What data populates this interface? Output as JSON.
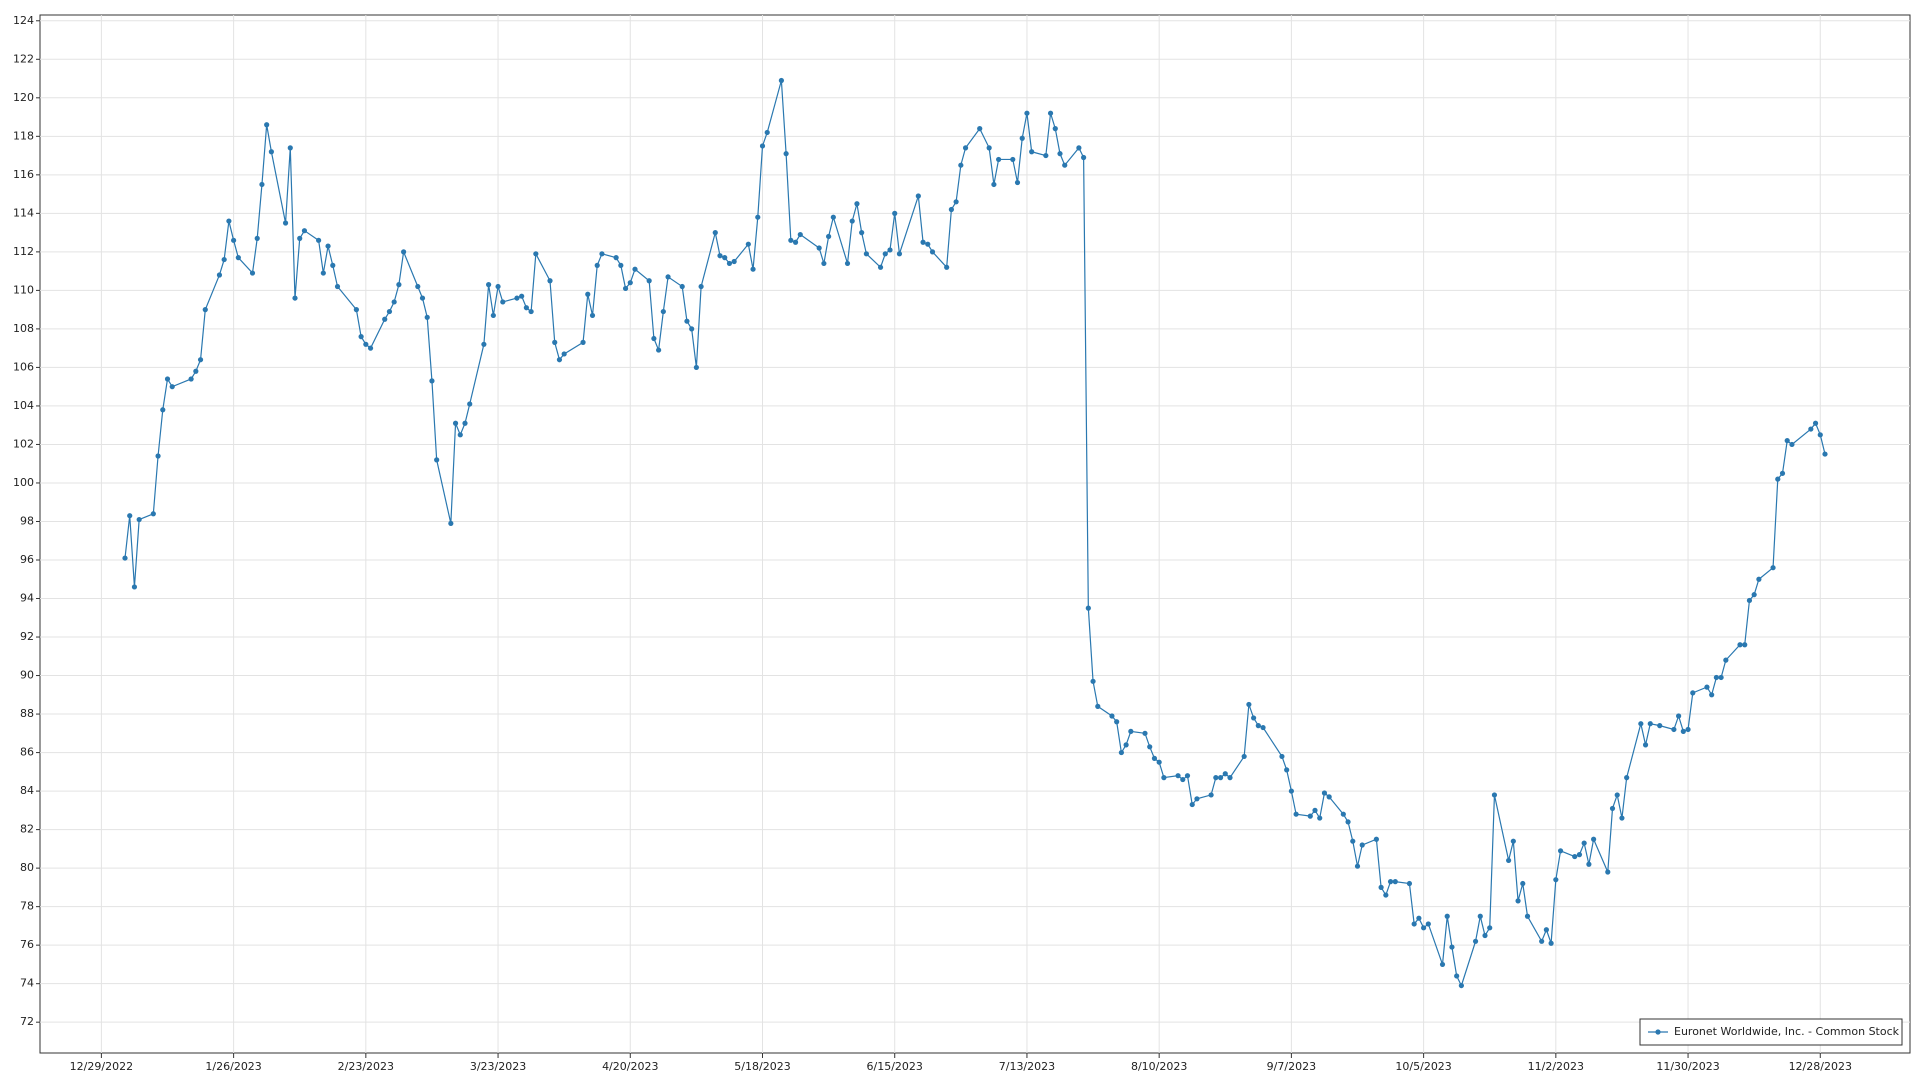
{
  "chart_data": {
    "type": "line",
    "grid": true,
    "legend": "lower right",
    "xlim": [
      "12/16/2022",
      "1/16/2024"
    ],
    "xticks": [
      "12/29/2022",
      "1/26/2023",
      "2/23/2023",
      "3/23/2023",
      "4/20/2023",
      "5/18/2023",
      "6/15/2023",
      "7/13/2023",
      "8/10/2023",
      "9/7/2023",
      "10/5/2023",
      "11/2/2023",
      "11/30/2023",
      "12/28/2023"
    ],
    "ylim": [
      70.4,
      124.3
    ],
    "yticks": [
      72,
      74,
      76,
      78,
      80,
      82,
      84,
      86,
      88,
      90,
      92,
      94,
      96,
      98,
      100,
      102,
      104,
      106,
      108,
      110,
      112,
      114,
      116,
      118,
      120,
      122,
      124
    ],
    "x": [
      "1/3/2023",
      "1/4/2023",
      "1/5/2023",
      "1/6/2023",
      "1/9/2023",
      "1/10/2023",
      "1/11/2023",
      "1/12/2023",
      "1/13/2023",
      "1/17/2023",
      "1/18/2023",
      "1/19/2023",
      "1/20/2023",
      "1/23/2023",
      "1/24/2023",
      "1/25/2023",
      "1/26/2023",
      "1/27/2023",
      "1/30/2023",
      "1/31/2023",
      "2/1/2023",
      "2/2/2023",
      "2/3/2023",
      "2/6/2023",
      "2/7/2023",
      "2/8/2023",
      "2/9/2023",
      "2/10/2023",
      "2/13/2023",
      "2/14/2023",
      "2/15/2023",
      "2/16/2023",
      "2/17/2023",
      "2/21/2023",
      "2/22/2023",
      "2/23/2023",
      "2/24/2023",
      "2/27/2023",
      "2/28/2023",
      "3/1/2023",
      "3/2/2023",
      "3/3/2023",
      "3/6/2023",
      "3/7/2023",
      "3/8/2023",
      "3/9/2023",
      "3/10/2023",
      "3/13/2023",
      "3/14/2023",
      "3/15/2023",
      "3/16/2023",
      "3/17/2023",
      "3/20/2023",
      "3/21/2023",
      "3/22/2023",
      "3/23/2023",
      "3/24/2023",
      "3/27/2023",
      "3/28/2023",
      "3/29/2023",
      "3/30/2023",
      "3/31/2023",
      "4/3/2023",
      "4/4/2023",
      "4/5/2023",
      "4/6/2023",
      "4/10/2023",
      "4/11/2023",
      "4/12/2023",
      "4/13/2023",
      "4/14/2023",
      "4/17/2023",
      "4/18/2023",
      "4/19/2023",
      "4/20/2023",
      "4/21/2023",
      "4/24/2023",
      "4/25/2023",
      "4/26/2023",
      "4/27/2023",
      "4/28/2023",
      "5/1/2023",
      "5/2/2023",
      "5/3/2023",
      "5/4/2023",
      "5/5/2023",
      "5/8/2023",
      "5/9/2023",
      "5/10/2023",
      "5/11/2023",
      "5/12/2023",
      "5/15/2023",
      "5/16/2023",
      "5/17/2023",
      "5/18/2023",
      "5/19/2023",
      "5/22/2023",
      "5/23/2023",
      "5/24/2023",
      "5/25/2023",
      "5/26/2023",
      "5/30/2023",
      "5/31/2023",
      "6/1/2023",
      "6/2/2023",
      "6/5/2023",
      "6/6/2023",
      "6/7/2023",
      "6/8/2023",
      "6/9/2023",
      "6/12/2023",
      "6/13/2023",
      "6/14/2023",
      "6/15/2023",
      "6/16/2023",
      "6/20/2023",
      "6/21/2023",
      "6/22/2023",
      "6/23/2023",
      "6/26/2023",
      "6/27/2023",
      "6/28/2023",
      "6/29/2023",
      "6/30/2023",
      "7/3/2023",
      "7/5/2023",
      "7/6/2023",
      "7/7/2023",
      "7/10/2023",
      "7/11/2023",
      "7/12/2023",
      "7/13/2023",
      "7/14/2023",
      "7/17/2023",
      "7/18/2023",
      "7/19/2023",
      "7/20/2023",
      "7/21/2023",
      "7/24/2023",
      "7/25/2023",
      "7/26/2023",
      "7/27/2023",
      "7/28/2023",
      "7/31/2023",
      "8/1/2023",
      "8/2/2023",
      "8/3/2023",
      "8/4/2023",
      "8/7/2023",
      "8/8/2023",
      "8/9/2023",
      "8/10/2023",
      "8/11/2023",
      "8/14/2023",
      "8/15/2023",
      "8/16/2023",
      "8/17/2023",
      "8/18/2023",
      "8/21/2023",
      "8/22/2023",
      "8/23/2023",
      "8/24/2023",
      "8/25/2023",
      "8/28/2023",
      "8/29/2023",
      "8/30/2023",
      "8/31/2023",
      "9/1/2023",
      "9/5/2023",
      "9/6/2023",
      "9/7/2023",
      "9/8/2023",
      "9/11/2023",
      "9/12/2023",
      "9/13/2023",
      "9/14/2023",
      "9/15/2023",
      "9/18/2023",
      "9/19/2023",
      "9/20/2023",
      "9/21/2023",
      "9/22/2023",
      "9/25/2023",
      "9/26/2023",
      "9/27/2023",
      "9/28/2023",
      "9/29/2023",
      "10/2/2023",
      "10/3/2023",
      "10/4/2023",
      "10/5/2023",
      "10/6/2023",
      "10/9/2023",
      "10/10/2023",
      "10/11/2023",
      "10/12/2023",
      "10/13/2023",
      "10/16/2023",
      "10/17/2023",
      "10/18/2023",
      "10/19/2023",
      "10/20/2023",
      "10/23/2023",
      "10/24/2023",
      "10/25/2023",
      "10/26/2023",
      "10/27/2023",
      "10/30/2023",
      "10/31/2023",
      "11/1/2023",
      "11/2/2023",
      "11/3/2023",
      "11/6/2023",
      "11/7/2023",
      "11/8/2023",
      "11/9/2023",
      "11/10/2023",
      "11/13/2023",
      "11/14/2023",
      "11/15/2023",
      "11/16/2023",
      "11/17/2023",
      "11/20/2023",
      "11/21/2023",
      "11/22/2023",
      "11/24/2023",
      "11/27/2023",
      "11/28/2023",
      "11/29/2023",
      "11/30/2023",
      "12/1/2023",
      "12/4/2023",
      "12/5/2023",
      "12/6/2023",
      "12/7/2023",
      "12/8/2023",
      "12/11/2023",
      "12/12/2023",
      "12/13/2023",
      "12/14/2023",
      "12/15/2023",
      "12/18/2023",
      "12/19/2023",
      "12/20/2023",
      "12/21/2023",
      "12/22/2023",
      "12/26/2023",
      "12/27/2023",
      "12/28/2023",
      "12/29/2023"
    ],
    "series": [
      {
        "name": "Euronet Worldwide, Inc. - Common Stock",
        "color": "#2a78b0",
        "values": [
          96.1,
          98.3,
          94.6,
          98.1,
          98.4,
          101.4,
          103.8,
          105.4,
          105.0,
          105.4,
          105.8,
          106.4,
          109.0,
          110.8,
          111.6,
          113.6,
          112.6,
          111.7,
          110.9,
          112.7,
          115.5,
          118.6,
          117.2,
          113.5,
          117.4,
          109.6,
          112.7,
          113.1,
          112.6,
          110.9,
          112.3,
          111.3,
          110.2,
          109.0,
          107.6,
          107.2,
          107.0,
          108.5,
          108.9,
          109.4,
          110.3,
          112.0,
          110.2,
          109.6,
          108.6,
          105.3,
          101.2,
          97.9,
          103.1,
          102.5,
          103.1,
          104.1,
          107.2,
          110.3,
          108.7,
          110.2,
          109.4,
          109.6,
          109.7,
          109.1,
          108.9,
          111.9,
          110.5,
          107.3,
          106.4,
          106.7,
          107.3,
          109.8,
          108.7,
          111.3,
          111.9,
          111.7,
          111.3,
          110.1,
          110.4,
          111.1,
          110.5,
          107.5,
          106.9,
          108.9,
          110.7,
          110.2,
          108.4,
          108.0,
          106.0,
          110.2,
          113.0,
          111.8,
          111.7,
          111.4,
          111.5,
          112.4,
          111.1,
          113.8,
          117.5,
          118.2,
          120.9,
          117.1,
          112.6,
          112.5,
          112.9,
          112.2,
          111.4,
          112.8,
          113.8,
          111.4,
          113.6,
          114.5,
          113.0,
          111.9,
          111.2,
          111.9,
          112.1,
          114.0,
          111.9,
          114.9,
          112.5,
          112.4,
          112.0,
          111.2,
          114.2,
          114.6,
          116.5,
          117.4,
          118.4,
          117.4,
          115.5,
          116.8,
          116.8,
          115.6,
          117.9,
          119.2,
          117.2,
          117.0,
          119.2,
          118.4,
          117.1,
          116.5,
          117.4,
          116.9,
          93.5,
          89.7,
          88.4,
          87.9,
          87.6,
          86.0,
          86.4,
          87.1,
          87.0,
          86.3,
          85.7,
          85.5,
          84.7,
          84.8,
          84.6,
          84.8,
          83.3,
          83.6,
          83.8,
          84.7,
          84.7,
          84.9,
          84.7,
          85.8,
          88.5,
          87.8,
          87.4,
          87.3,
          85.8,
          85.1,
          84.0,
          82.8,
          82.7,
          83.0,
          82.6,
          83.9,
          83.7,
          82.8,
          82.4,
          81.4,
          80.1,
          81.2,
          81.5,
          79.0,
          78.6,
          79.3,
          79.3,
          79.2,
          77.1,
          77.4,
          76.9,
          77.1,
          75.0,
          77.5,
          75.9,
          74.4,
          73.9,
          76.2,
          77.5,
          76.5,
          76.9,
          83.8,
          80.4,
          81.4,
          78.3,
          79.2,
          77.5,
          76.2,
          76.8,
          76.1,
          79.4,
          80.9,
          80.6,
          80.7,
          81.3,
          80.2,
          81.5,
          79.8,
          83.1,
          83.8,
          82.6,
          84.7,
          87.5,
          86.4,
          87.5,
          87.4,
          87.2,
          87.9,
          87.1,
          87.2,
          89.1,
          89.4,
          89.0,
          89.9,
          89.9,
          90.8,
          91.6,
          91.6,
          93.9,
          94.2,
          95.0,
          95.6,
          100.2,
          100.5,
          102.2,
          102.0,
          102.8,
          103.1,
          102.5,
          101.5
        ]
      }
    ]
  }
}
